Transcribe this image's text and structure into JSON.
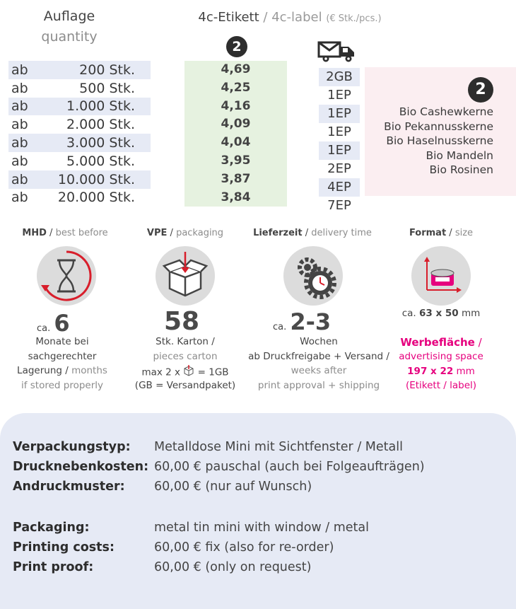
{
  "header": {
    "quantity_de": "Auflage",
    "quantity_en": "quantity",
    "label_de": "4c-Etikett",
    "label_sep": " / ",
    "label_en": "4c-label",
    "label_unit": "(€ Stk./pcs.)",
    "variant_badge": "2",
    "shipping_icon": "truck-icon"
  },
  "quantities": [
    {
      "prefix": "ab",
      "amount": "200 Stk."
    },
    {
      "prefix": "ab",
      "amount": "500 Stk."
    },
    {
      "prefix": "ab",
      "amount": "1.000 Stk."
    },
    {
      "prefix": "ab",
      "amount": "2.000 Stk."
    },
    {
      "prefix": "ab",
      "amount": "3.000 Stk."
    },
    {
      "prefix": "ab",
      "amount": "5.000 Stk."
    },
    {
      "prefix": "ab",
      "amount": "10.000 Stk."
    },
    {
      "prefix": "ab",
      "amount": "20.000 Stk."
    }
  ],
  "prices": [
    "4,69",
    "4,25",
    "4,16",
    "4,09",
    "4,04",
    "3,95",
    "3,87",
    "3,84"
  ],
  "shipping": [
    "2GB",
    "1EP",
    "1EP",
    "1EP",
    "1EP",
    "2EP",
    "4EP",
    "7EP"
  ],
  "contents": {
    "badge": "2",
    "items": [
      "Bio Cashewkerne",
      "Bio Pekannusskerne",
      "Bio Haselnusskerne",
      "Bio Mandeln",
      "Bio Rosinen"
    ]
  },
  "info": {
    "mhd": {
      "title_de": "MHD",
      "title_en": "best before",
      "icon": "hourglass-icon",
      "prefix": "ca.",
      "value": "6",
      "line1": "Monate bei",
      "line2": "sachgerechter",
      "line3_de": "Lagerung",
      "line3_en": "months",
      "line4": "if stored properly"
    },
    "vpe": {
      "title_de": "VPE",
      "title_en": "packaging",
      "icon": "box-icon",
      "value": "58",
      "line1": "Stk. Karton /",
      "line2": "pieces carton",
      "line3a": "max 2 x",
      "line3b": "= 1GB",
      "line4": "(GB = Versandpaket)"
    },
    "delivery": {
      "title_de": "Lieferzeit",
      "title_en": "delivery time",
      "icon": "gears-clock-icon",
      "prefix": "ca.",
      "value": "2-3",
      "line1": "Wochen",
      "line2": "ab Druckfreigabe + Versand /",
      "line3": "weeks after",
      "line4": "print approval + shipping"
    },
    "format": {
      "title_de": "Format",
      "title_en": "size",
      "icon": "tin-size-icon",
      "prefix": "ca.",
      "value": "63 x 50",
      "unit": "mm",
      "ad_de": "Werbefläche",
      "ad_en": "advertising space",
      "ad_size": "197 x 22",
      "ad_unit": "mm",
      "ad_note": "(Etikett / label)"
    }
  },
  "specs_de": [
    {
      "key": "Verpackungstyp:",
      "value": "Metalldose Mini mit Sichtfenster / Metall"
    },
    {
      "key": "Drucknebenkosten:",
      "value": "60,00 € pauschal (auch bei Folgeaufträgen)"
    },
    {
      "key": "Andruckmuster:",
      "value": "60,00 € (nur auf Wunsch)"
    }
  ],
  "specs_en": [
    {
      "key": "Packaging:",
      "value": "metal tin mini with window / metal"
    },
    {
      "key": "Printing costs:",
      "value": "60,00 € fix (also for re-order)"
    },
    {
      "key": "Print proof:",
      "value": "60,00 € (only on request)"
    }
  ],
  "colors": {
    "accent": "#e6007e",
    "price_bg": "#e6f2e0",
    "row_alt": "#e6eaf5",
    "contents_bg": "#fbeef1",
    "panel_bg": "#e6eaf5"
  }
}
